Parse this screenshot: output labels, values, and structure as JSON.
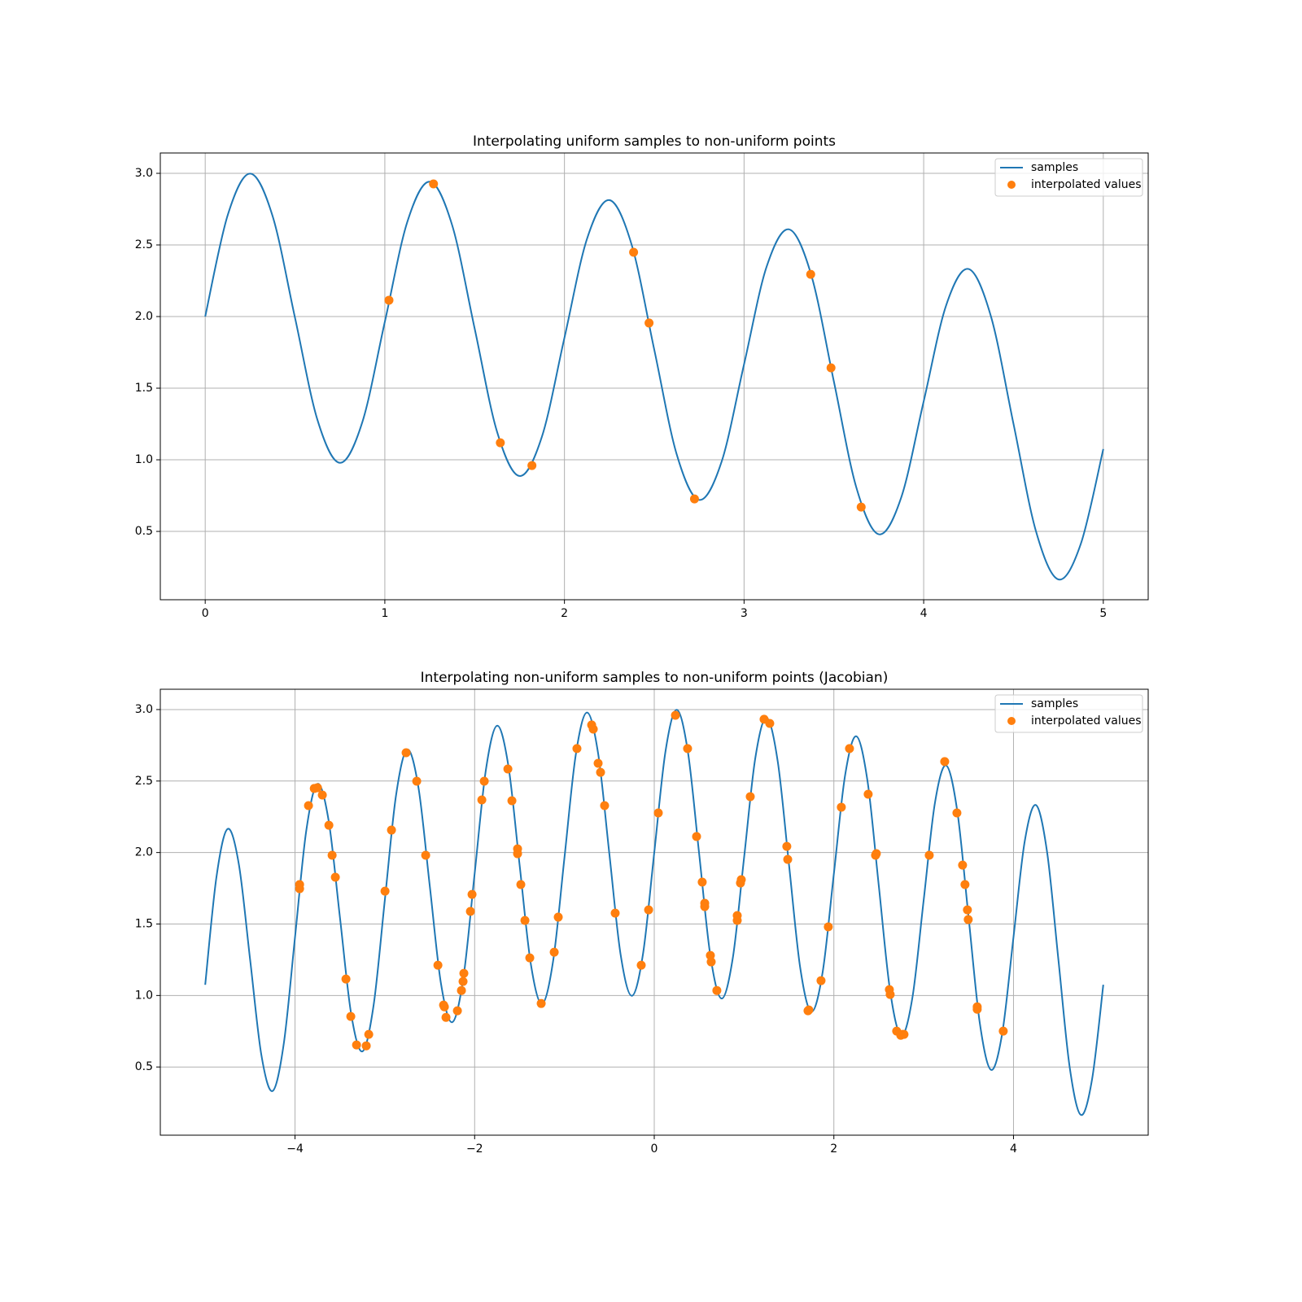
{
  "chart_data": [
    {
      "type": "line",
      "title": "Interpolating uniform samples to non-uniform points",
      "x": [
        0,
        0.125,
        0.25,
        0.375,
        0.5,
        0.625,
        0.75,
        0.875,
        1,
        1.125,
        1.25,
        1.375,
        1.5,
        1.625,
        1.75,
        1.875,
        2,
        2.125,
        2.25,
        2.375,
        2.5,
        2.625,
        2.75,
        2.875,
        3,
        3.125,
        3.25,
        3.375,
        3.5,
        3.625,
        3.75,
        3.875,
        4,
        4.125,
        4.25,
        4.375,
        4.5,
        4.625,
        4.75,
        4.875,
        5
      ],
      "series": [
        {
          "name": "samples",
          "type": "line",
          "color": "#1f77b4",
          "values": [
            2,
            2.707,
            2.998,
            2.702,
            1.991,
            1.278,
            0.979,
            1.264,
            1.963,
            2.66,
            2.942,
            2.637,
            1.917,
            1.195,
            0.887,
            1.163,
            1.852,
            2.54,
            2.813,
            2.498,
            1.769,
            1.038,
            0.72,
            0.987,
            1.667,
            2.346,
            2.609,
            2.286,
            1.547,
            0.807,
            0.48,
            0.737,
            1.408,
            2.078,
            2.332,
            1.999,
            1.251,
            0.502,
            0.165,
            0.414,
            1.075
          ]
        },
        {
          "name": "interpolated values",
          "type": "scatter",
          "color": "#ff7f0e",
          "x": [
            1.023,
            1.271,
            1.643,
            1.819,
            2.385,
            2.471,
            2.724,
            3.371,
            3.484,
            3.652
          ],
          "values": [
            2.114,
            2.926,
            1.119,
            0.96,
            2.449,
            1.955,
            0.727,
            2.295,
            1.642,
            0.67
          ]
        }
      ],
      "xlim": [
        -0.25,
        5.25
      ],
      "ylim": [
        0.023,
        3.142
      ],
      "xticks": [
        0,
        1,
        2,
        3,
        4,
        5
      ],
      "yticks": [
        {
          "value": 0.5,
          "label": "0.5"
        },
        {
          "value": 1,
          "label": "1.0"
        },
        {
          "value": 1.5,
          "label": "1.5"
        },
        {
          "value": 2,
          "label": "2.0"
        },
        {
          "value": 2.5,
          "label": "2.5"
        },
        {
          "value": 3,
          "label": "3.0"
        }
      ],
      "grid": true,
      "legend": "upper-right"
    },
    {
      "type": "line",
      "title": "Interpolating non-uniform samples to non-uniform points (Jacobian)",
      "x": [
        -5,
        -4.875,
        -4.75,
        -4.625,
        -4.5,
        -4.375,
        -4.25,
        -4.125,
        -4,
        -3.875,
        -3.75,
        -3.625,
        -3.5,
        -3.375,
        -3.25,
        -3.125,
        -3,
        -2.875,
        -2.75,
        -2.625,
        -2.5,
        -2.375,
        -2.25,
        -2.125,
        -2,
        -1.875,
        -1.75,
        -1.625,
        -1.5,
        -1.375,
        -1.25,
        -1.125,
        -1,
        -0.875,
        -0.75,
        -0.625,
        -0.5,
        -0.375,
        -0.25,
        -0.125,
        0,
        0.125,
        0.25,
        0.375,
        0.5,
        0.625,
        0.75,
        0.875,
        1,
        1.125,
        1.25,
        1.375,
        1.5,
        1.625,
        1.75,
        1.875,
        2,
        2.125,
        2.25,
        2.375,
        2.5,
        2.625,
        2.75,
        2.875,
        3,
        3.125,
        3.25,
        3.375,
        3.5,
        3.625,
        3.75,
        3.875,
        4,
        4.125,
        4.25,
        4.375,
        4.5,
        4.625,
        4.75,
        4.875,
        5
      ],
      "series": [
        {
          "name": "samples",
          "type": "line",
          "color": "#1f77b4",
          "values": [
            1.075,
            1.828,
            2.165,
            1.916,
            1.251,
            0.585,
            0.332,
            0.664,
            1.408,
            2.152,
            2.48,
            2.221,
            1.547,
            0.872,
            0.609,
            0.932,
            1.667,
            2.401,
            2.72,
            2.452,
            1.769,
            1.084,
            0.813,
            1.126,
            1.852,
            2.577,
            2.887,
            2.609,
            1.917,
            1.223,
            0.942,
            1.246,
            1.963,
            2.679,
            2.979,
            2.693,
            1.991,
            1.288,
            0.998,
            1.292,
            2,
            2.707,
            2.998,
            2.702,
            1.991,
            1.278,
            0.979,
            1.264,
            1.963,
            2.66,
            2.942,
            2.637,
            1.917,
            1.195,
            0.887,
            1.163,
            1.852,
            2.54,
            2.813,
            2.498,
            1.769,
            1.038,
            0.72,
            0.987,
            1.667,
            2.346,
            2.609,
            2.286,
            1.547,
            0.807,
            0.48,
            0.737,
            1.408,
            2.078,
            2.332,
            1.999,
            1.251,
            0.502,
            0.165,
            0.414,
            1.075
          ]
        },
        {
          "name": "interpolated values",
          "type": "scatter",
          "color": "#ff7f0e",
          "x": [
            -3.949,
            -3.949,
            -3.85,
            -3.786,
            -3.75,
            -3.696,
            -3.623,
            -3.587,
            -3.551,
            -3.433,
            -3.379,
            -3.315,
            -3.207,
            -3.179,
            -2.998,
            -2.926,
            -2.763,
            -2.645,
            -2.545,
            -2.409,
            -2.346,
            -2.337,
            -2.319,
            -2.192,
            -2.147,
            -2.129,
            -2.12,
            -2.047,
            -2.029,
            -1.92,
            -1.893,
            -1.63,
            -1.585,
            -1.522,
            -1.522,
            -1.486,
            -1.44,
            -1.386,
            -1.259,
            -1.114,
            -1.069,
            -0.861,
            -0.697,
            -0.679,
            -0.625,
            -0.598,
            -0.553,
            -0.435,
            -0.145,
            -0.063,
            0.045,
            0.236,
            0.371,
            0.471,
            0.534,
            0.562,
            0.562,
            0.625,
            0.634,
            0.697,
            0.924,
            0.924,
            0.96,
            0.969,
            1.069,
            1.223,
            1.286,
            1.476,
            1.486,
            1.712,
            1.721,
            1.857,
            1.938,
            2.083,
            2.174,
            2.382,
            2.464,
            2.473,
            2.618,
            2.627,
            2.699,
            2.745,
            2.763,
            2.781,
            3.062,
            3.234,
            3.37,
            3.433,
            3.46,
            3.487,
            3.496,
            3.596,
            3.596,
            3.886
          ],
          "values": [
            1.776,
            1.747,
            2.328,
            2.448,
            2.453,
            2.402,
            2.191,
            1.981,
            1.827,
            1.115,
            0.853,
            0.654,
            0.648,
            0.728,
            1.73,
            2.157,
            2.698,
            2.499,
            1.981,
            1.212,
            0.933,
            0.921,
            0.847,
            0.893,
            1.035,
            1.098,
            1.155,
            1.588,
            1.707,
            2.368,
            2.499,
            2.584,
            2.362,
            2.026,
            1.992,
            1.776,
            1.525,
            1.263,
            0.944,
            1.303,
            1.548,
            2.727,
            2.892,
            2.863,
            2.624,
            2.561,
            2.328,
            1.576,
            1.212,
            1.599,
            2.277,
            2.96,
            2.727,
            2.112,
            1.793,
            1.645,
            1.622,
            1.28,
            1.235,
            1.035,
            1.525,
            1.559,
            1.787,
            1.81,
            2.391,
            2.932,
            2.903,
            2.043,
            1.952,
            0.893,
            0.899,
            1.104,
            1.48,
            2.317,
            2.727,
            2.408,
            1.981,
            1.992,
            1.041,
            1.007,
            0.751,
            0.722,
            0.728,
            0.728,
            1.981,
            2.636,
            2.277,
            1.912,
            1.776,
            1.599,
            1.531,
            0.921,
            0.904,
            0.751
          ]
        }
      ],
      "xlim": [
        -5.5,
        5.5
      ],
      "ylim": [
        0.023,
        3.142
      ],
      "xticks": [
        {
          "value": -4,
          "label": "−4"
        },
        {
          "value": -2,
          "label": "−2"
        },
        0,
        2,
        4
      ],
      "yticks": [
        {
          "value": 0.5,
          "label": "0.5"
        },
        {
          "value": 1,
          "label": "1.0"
        },
        {
          "value": 1.5,
          "label": "1.5"
        },
        {
          "value": 2,
          "label": "2.0"
        },
        {
          "value": 2.5,
          "label": "2.5"
        },
        {
          "value": 3,
          "label": "3.0"
        }
      ],
      "grid": true,
      "legend": "upper-right"
    }
  ]
}
